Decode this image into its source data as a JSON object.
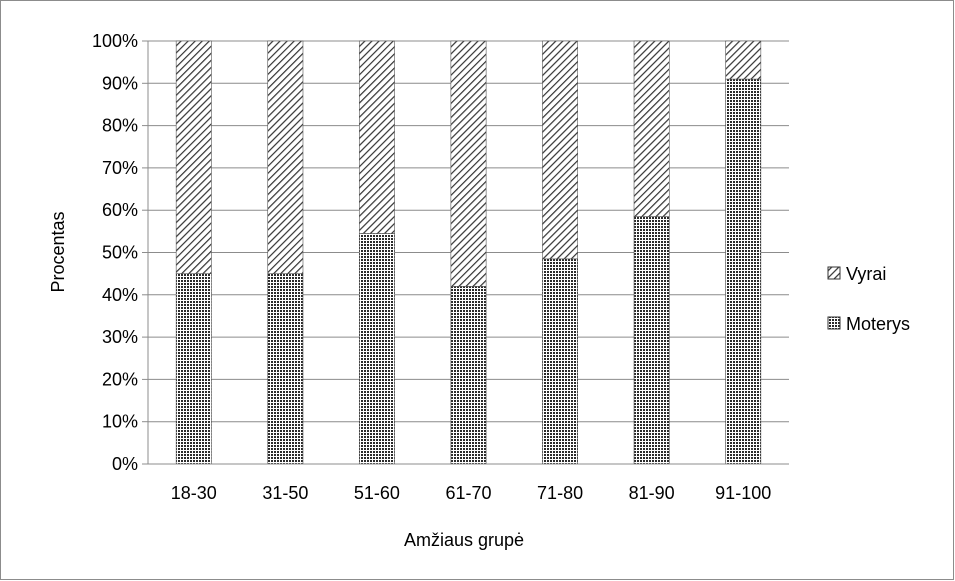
{
  "chart_data": {
    "type": "bar",
    "stacked": true,
    "percent_stacked": true,
    "categories": [
      "18-30",
      "31-50",
      "51-60",
      "61-70",
      "71-80",
      "81-90",
      "91-100"
    ],
    "series": [
      {
        "name": "Moterys",
        "values": [
          45,
          45,
          54.5,
          42,
          48.5,
          58.5,
          91
        ],
        "pattern": "dotted",
        "color": "#3a3a3a"
      },
      {
        "name": "Vyrai",
        "values": [
          55,
          55,
          45.5,
          58,
          51.5,
          41.5,
          9
        ],
        "pattern": "diagonal-hatch",
        "color": "#3a3a3a"
      }
    ],
    "y_ticks": [
      "0%",
      "10%",
      "20%",
      "30%",
      "40%",
      "50%",
      "60%",
      "70%",
      "80%",
      "90%",
      "100%"
    ],
    "ylim": [
      0,
      100
    ],
    "xlabel": "Amžiaus grupė",
    "ylabel": "Procentas",
    "grid": true,
    "legend_position": "right",
    "legend_order": [
      "Vyrai",
      "Moterys"
    ]
  }
}
